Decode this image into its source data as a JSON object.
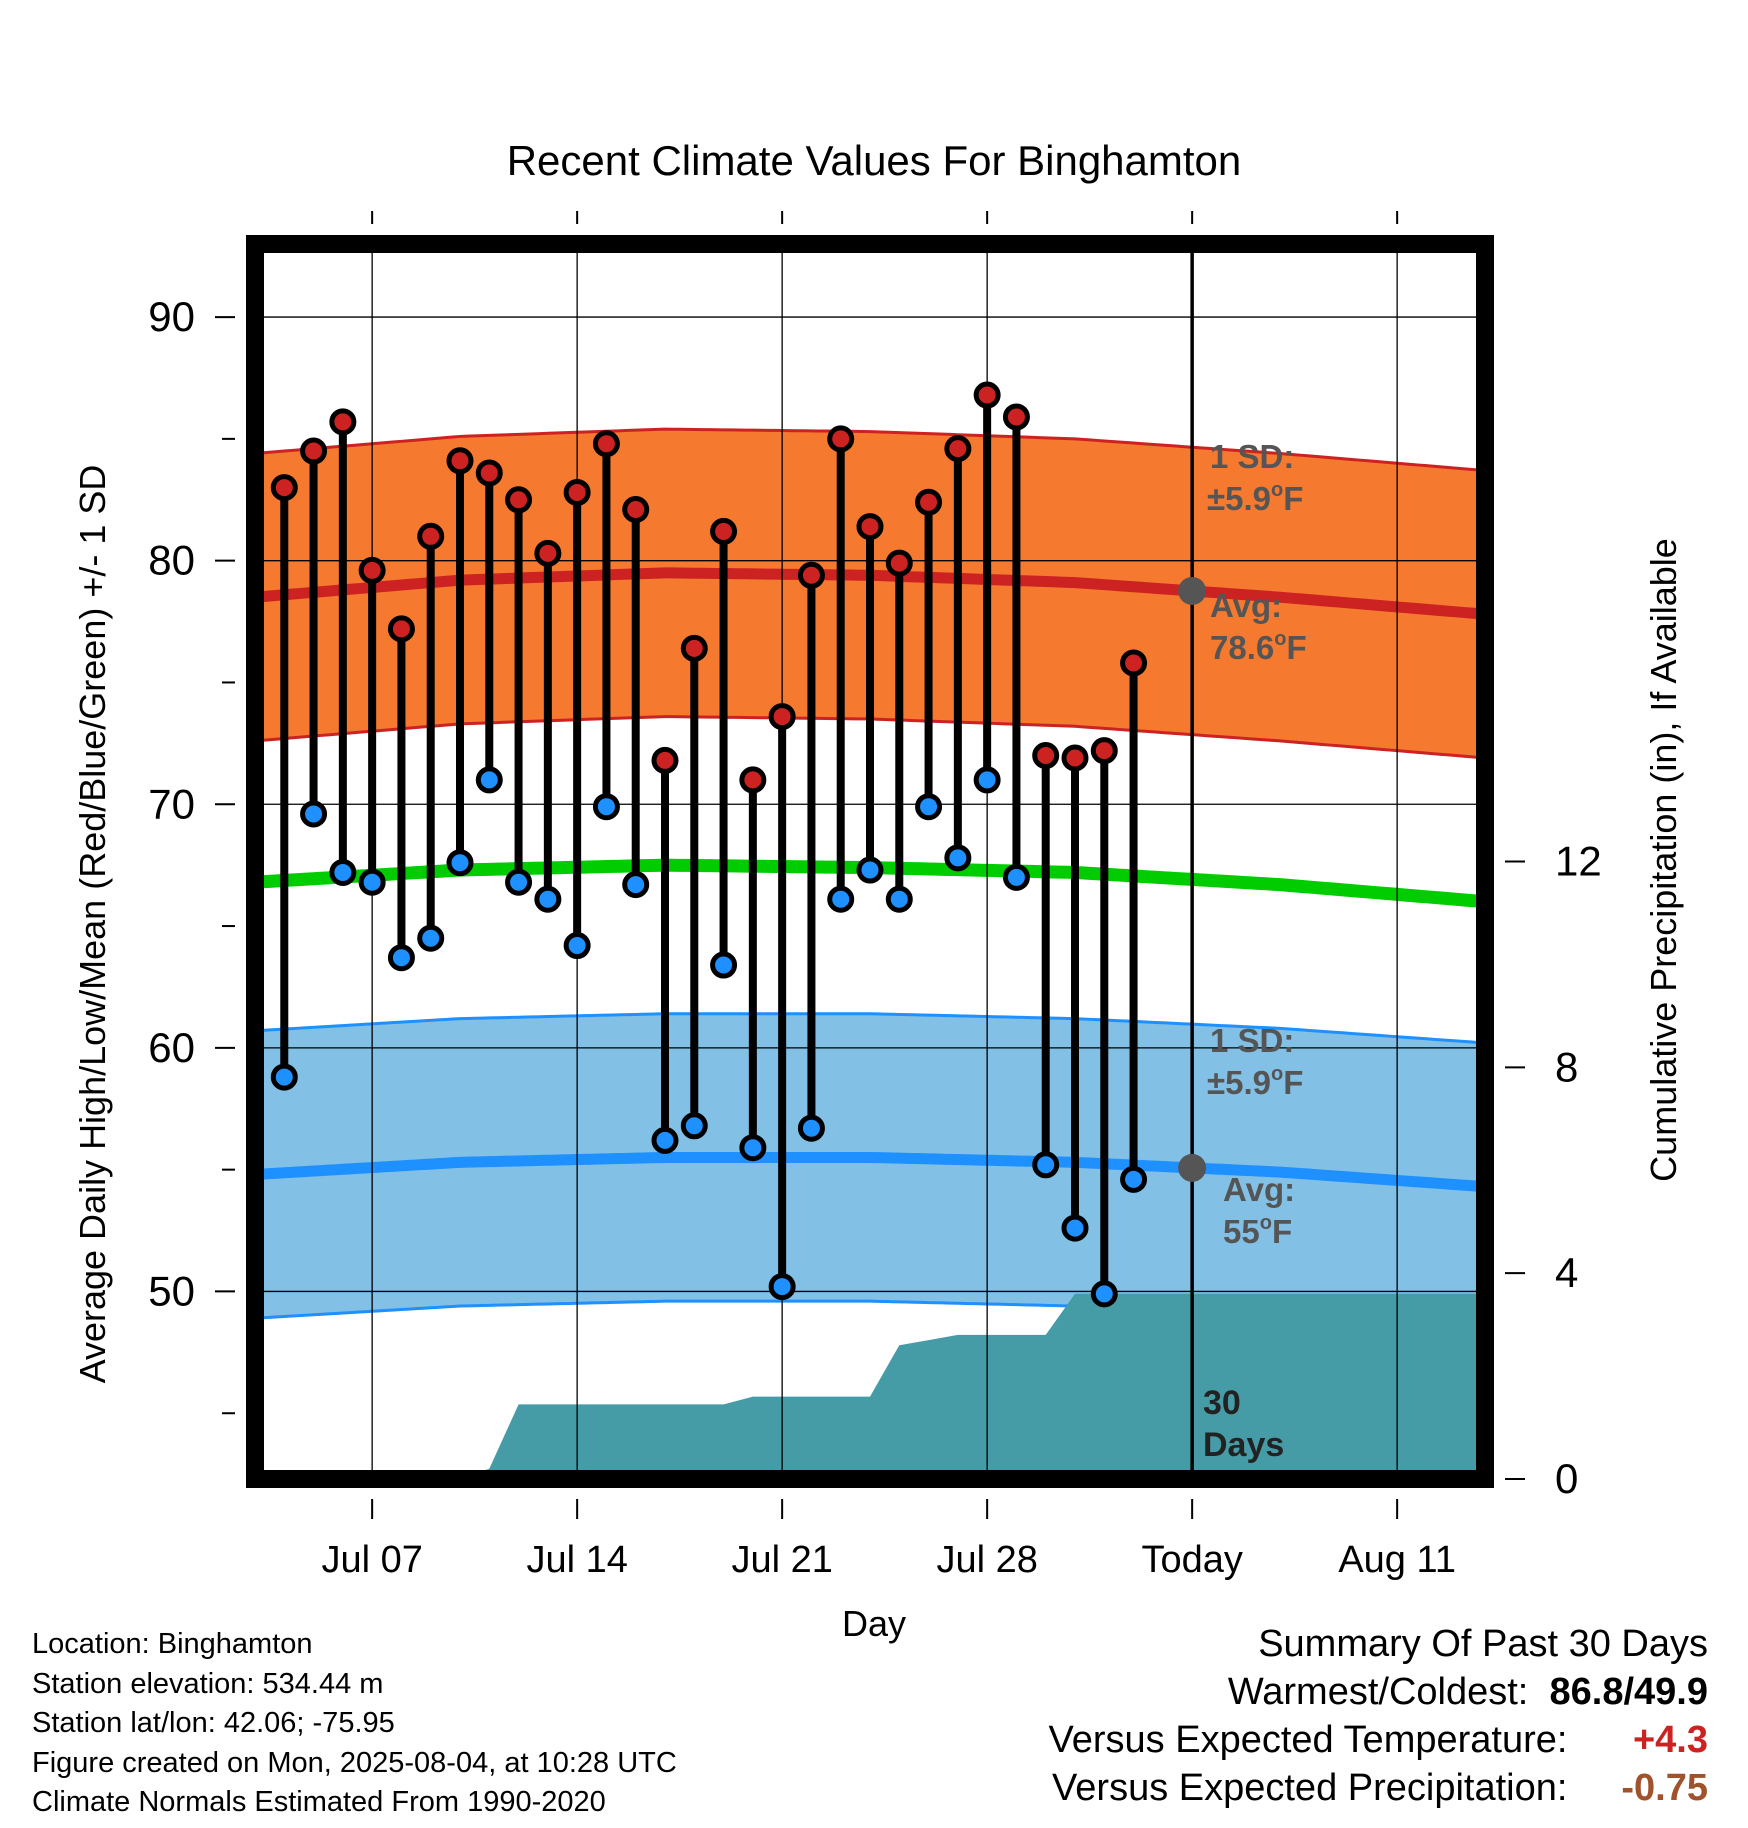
{
  "chart_data": {
    "type": "line",
    "title": "Recent Climate Values For Binghamton",
    "xlabel": "Day",
    "ylabel": "Average Daily High/Low/Mean (Red/Blue/Green) +/- 1 SD",
    "y2label": "Cumulative Precipitation (in), If Available",
    "x_tick_labels": [
      "Jul 07",
      "Jul 14",
      "Jul 21",
      "Jul 28",
      "Today",
      "Aug 11"
    ],
    "x_tick_dates": [
      "2025-07-07",
      "2025-07-14",
      "2025-07-21",
      "2025-07-28",
      "2025-08-04",
      "2025-08-11"
    ],
    "xlim": [
      "2025-07-03",
      "2025-08-14"
    ],
    "ylim": [
      42.3,
      93.0
    ],
    "y_ticks": [
      50,
      60,
      70,
      80,
      90
    ],
    "y2lim": [
      0,
      24
    ],
    "y2_ticks": [
      0,
      4,
      8,
      12
    ],
    "grid": true,
    "today_date": "2025-08-04",
    "dates": [
      "2025-07-04",
      "2025-07-05",
      "2025-07-06",
      "2025-07-07",
      "2025-07-08",
      "2025-07-09",
      "2025-07-10",
      "2025-07-11",
      "2025-07-12",
      "2025-07-13",
      "2025-07-14",
      "2025-07-15",
      "2025-07-16",
      "2025-07-17",
      "2025-07-18",
      "2025-07-19",
      "2025-07-20",
      "2025-07-21",
      "2025-07-22",
      "2025-07-23",
      "2025-07-24",
      "2025-07-25",
      "2025-07-26",
      "2025-07-27",
      "2025-07-28",
      "2025-07-29",
      "2025-07-30",
      "2025-07-31",
      "2025-08-01",
      "2025-08-02",
      "2025-08-03"
    ],
    "series": [
      {
        "name": "High",
        "color": "#cc2222",
        "values": [
          83.0,
          84.5,
          85.7,
          79.6,
          77.2,
          81.0,
          84.1,
          83.6,
          82.5,
          80.3,
          82.8,
          84.8,
          82.1,
          71.8,
          76.4,
          81.2,
          71.0,
          73.6,
          79.4,
          85.0,
          81.4,
          79.9,
          82.4,
          84.6,
          86.8,
          85.9,
          72.0,
          71.9,
          72.2,
          75.8,
          null
        ]
      },
      {
        "name": "Low",
        "color": "#1e90ff",
        "values": [
          58.8,
          69.6,
          67.2,
          66.8,
          63.7,
          64.5,
          67.6,
          71.0,
          66.8,
          66.1,
          64.2,
          69.9,
          66.7,
          56.2,
          56.8,
          63.4,
          55.9,
          50.2,
          56.7,
          66.1,
          67.3,
          66.1,
          69.9,
          67.8,
          71.0,
          67.0,
          55.2,
          52.6,
          49.9,
          54.6,
          null
        ]
      }
    ],
    "normals": {
      "dates": [
        "2025-07-03",
        "2025-07-10",
        "2025-07-17",
        "2025-07-24",
        "2025-07-31",
        "2025-08-07",
        "2025-08-14"
      ],
      "avg_high": [
        78.5,
        79.2,
        79.5,
        79.4,
        79.1,
        78.5,
        77.8
      ],
      "avg_low": [
        54.8,
        55.3,
        55.5,
        55.5,
        55.3,
        54.9,
        54.3
      ],
      "avg_mean": [
        66.8,
        67.3,
        67.5,
        67.4,
        67.2,
        66.7,
        66.0
      ],
      "sd": 5.9
    },
    "precipitation": {
      "dates": [
        "2025-07-03",
        "2025-07-10",
        "2025-07-11",
        "2025-07-12",
        "2025-07-13",
        "2025-07-18",
        "2025-07-19",
        "2025-07-20",
        "2025-07-23",
        "2025-07-24",
        "2025-07-25",
        "2025-07-26",
        "2025-07-27",
        "2025-07-30",
        "2025-07-31",
        "2025-08-14"
      ],
      "values": [
        0,
        0,
        0.2,
        1.45,
        1.45,
        1.45,
        1.45,
        1.6,
        1.6,
        1.6,
        2.6,
        2.7,
        2.8,
        2.8,
        3.6,
        3.6
      ]
    },
    "annotations": {
      "high_sd_label": "1 SD:",
      "high_sd_value": "±5.9",
      "high_avg_label": "Avg:",
      "high_avg_value": "78.6",
      "low_sd_label": "1 SD:",
      "low_sd_value": "±5.9",
      "low_avg_label": "Avg:",
      "low_avg_value": "55",
      "degree_unit": "o",
      "temp_unit": "F",
      "period_label_line1": "30",
      "period_label_line2": "Days"
    }
  },
  "info": {
    "location": "Location: Binghamton",
    "elevation": "Station elevation: 534.44 m",
    "latlon": "Station lat/lon: 42.06; -75.95",
    "created": "Figure created on Mon, 2025-08-04, at 10:28 UTC",
    "normals": "Climate Normals Estimated From 1990-2020"
  },
  "summary": {
    "title": "Summary Of Past 30 Days",
    "warm_cold_label": "Warmest/Coldest:",
    "warmest": "86.8",
    "slash": "/",
    "coldest": "49.9",
    "temp_label": "Versus Expected Temperature:",
    "temp_value": "+4.3",
    "precip_label": "Versus Expected Precipitation:",
    "precip_value": "-0.75"
  },
  "colors": {
    "high_band": "#f5792f",
    "high_line": "#cc2222",
    "low_band": "#82c0e6",
    "low_line": "#1e90ff",
    "mean_line": "#00cc00",
    "precip_fill": "#469ca6",
    "annotation_text": "#555555",
    "temp_positive": "#cc2222",
    "precip_negative": "#a0522d"
  }
}
